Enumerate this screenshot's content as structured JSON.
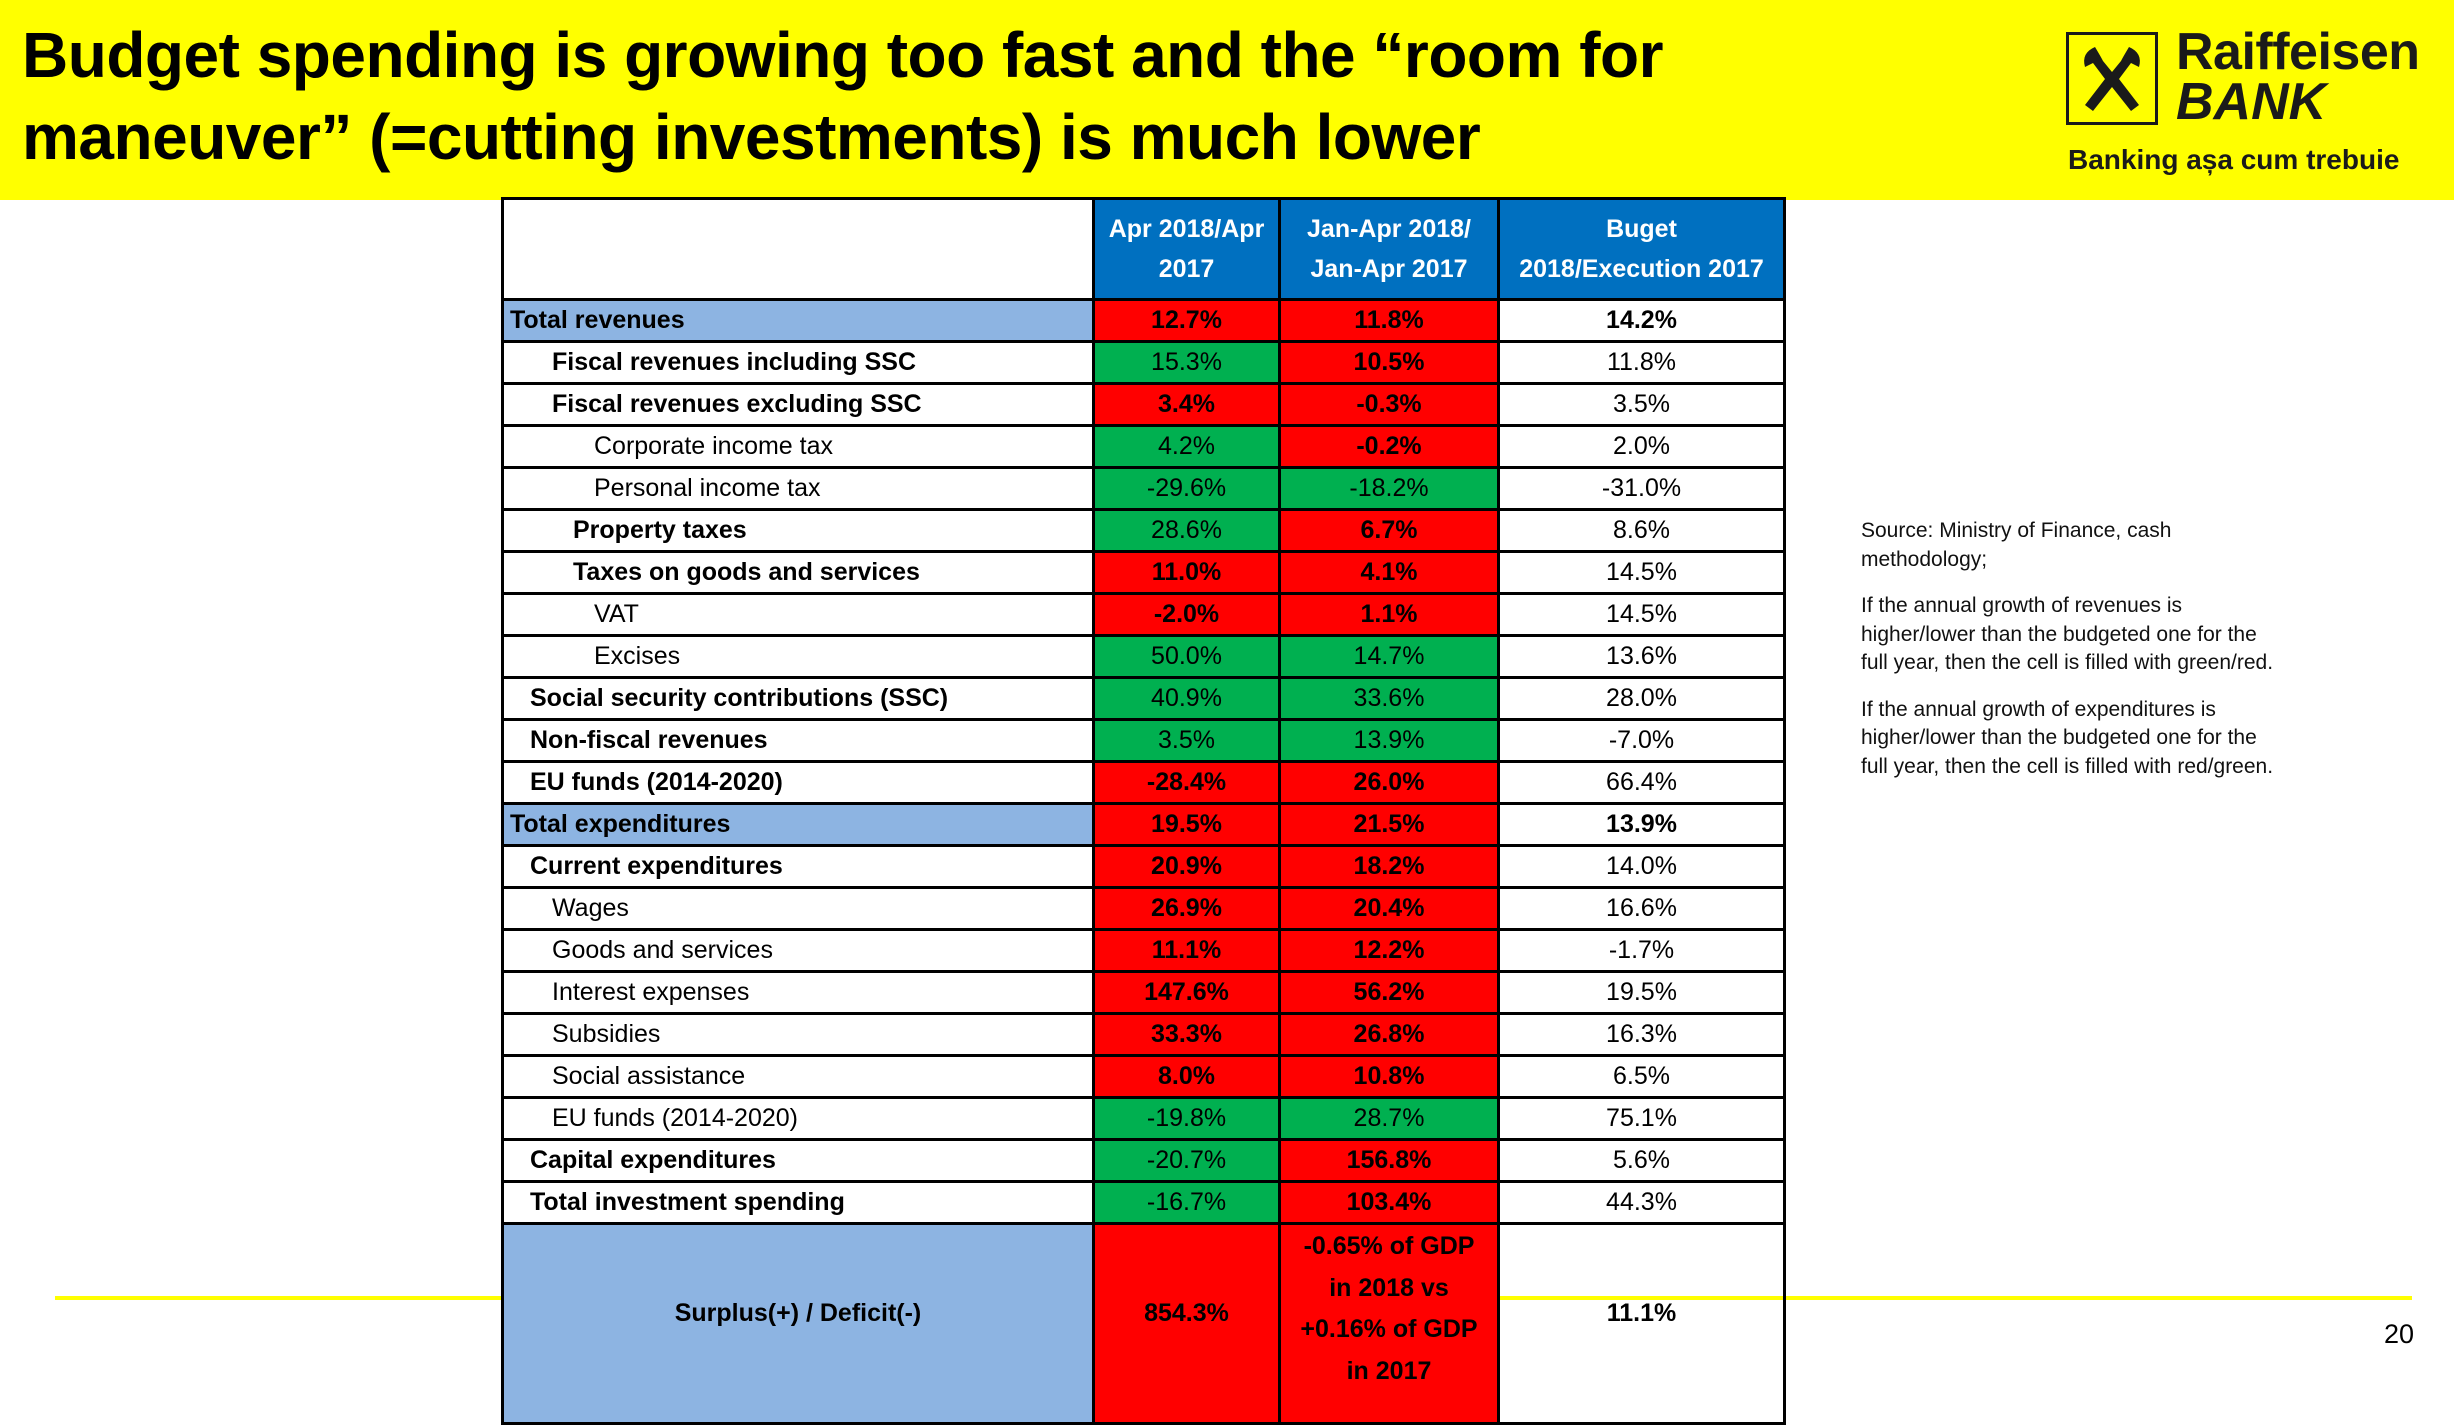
{
  "header": {
    "title_lines": [
      "Budget spending is growing too fast and the “room for",
      "maneuver” (=cutting investments) is much lower"
    ],
    "logo": {
      "name": "Raiffeisen",
      "bank": "BANK",
      "tagline": "Banking așa cum trebuie",
      "icon": "crossed-horse-gables-icon"
    }
  },
  "colors": {
    "banner": "#FFFF00",
    "header_cell": "#0070C0",
    "total_row": "#8DB4E2",
    "red": "#FF0000",
    "green": "#00B050"
  },
  "table": {
    "columns": [
      "",
      "Apr 2018/Apr 2017",
      "Jan-Apr 2018/ Jan-Apr 2017",
      "Buget 2018/Execution 2017"
    ],
    "column_header_lines": [
      [
        "Apr 2018/Apr",
        "2017"
      ],
      [
        "Jan-Apr 2018/",
        "Jan-Apr 2017"
      ],
      [
        "Buget",
        "2018/Execution 2017"
      ]
    ],
    "rows": [
      {
        "label": "Total revenues",
        "c1": "12.7%",
        "c1_fill": "red",
        "c2": "11.8%",
        "c2_fill": "red",
        "c3": "14.2%"
      },
      {
        "label": "Fiscal revenues including SSC",
        "c1": "15.3%",
        "c1_fill": "green",
        "c2": "10.5%",
        "c2_fill": "red",
        "c3": "11.8%"
      },
      {
        "label": "Fiscal revenues excluding SSC",
        "c1": "3.4%",
        "c1_fill": "red",
        "c2": "-0.3%",
        "c2_fill": "red",
        "c3": "3.5%"
      },
      {
        "label": "Corporate income tax",
        "c1": "4.2%",
        "c1_fill": "green",
        "c2": "-0.2%",
        "c2_fill": "red",
        "c3": "2.0%"
      },
      {
        "label": "Personal income tax",
        "c1": "-29.6%",
        "c1_fill": "green",
        "c2": "-18.2%",
        "c2_fill": "green",
        "c3": "-31.0%"
      },
      {
        "label": "Property taxes",
        "c1": "28.6%",
        "c1_fill": "green",
        "c2": "6.7%",
        "c2_fill": "red",
        "c3": "8.6%"
      },
      {
        "label": "Taxes on goods and services",
        "c1": "11.0%",
        "c1_fill": "red",
        "c2": "4.1%",
        "c2_fill": "red",
        "c3": "14.5%"
      },
      {
        "label": "VAT",
        "c1": "-2.0%",
        "c1_fill": "red",
        "c2": "1.1%",
        "c2_fill": "red",
        "c3": "14.5%"
      },
      {
        "label": "Excises",
        "c1": "50.0%",
        "c1_fill": "green",
        "c2": "14.7%",
        "c2_fill": "green",
        "c3": "13.6%"
      },
      {
        "label": "Social security contributions (SSC)",
        "c1": "40.9%",
        "c1_fill": "green",
        "c2": "33.6%",
        "c2_fill": "green",
        "c3": "28.0%"
      },
      {
        "label": "Non-fiscal revenues",
        "c1": "3.5%",
        "c1_fill": "green",
        "c2": "13.9%",
        "c2_fill": "green",
        "c3": "-7.0%"
      },
      {
        "label": "EU funds (2014-2020)",
        "c1": "-28.4%",
        "c1_fill": "red",
        "c2": "26.0%",
        "c2_fill": "red",
        "c3": "66.4%"
      },
      {
        "label": "Total expenditures",
        "c1": "19.5%",
        "c1_fill": "red",
        "c2": "21.5%",
        "c2_fill": "red",
        "c3": "13.9%"
      },
      {
        "label": "Current expenditures",
        "c1": "20.9%",
        "c1_fill": "red",
        "c2": "18.2%",
        "c2_fill": "red",
        "c3": "14.0%"
      },
      {
        "label": "Wages",
        "c1": "26.9%",
        "c1_fill": "red",
        "c2": "20.4%",
        "c2_fill": "red",
        "c3": "16.6%"
      },
      {
        "label": "Goods and services",
        "c1": "11.1%",
        "c1_fill": "red",
        "c2": "12.2%",
        "c2_fill": "red",
        "c3": "-1.7%"
      },
      {
        "label": "Interest expenses",
        "c1": "147.6%",
        "c1_fill": "red",
        "c2": "56.2%",
        "c2_fill": "red",
        "c3": "19.5%"
      },
      {
        "label": "Subsidies",
        "c1": "33.3%",
        "c1_fill": "red",
        "c2": "26.8%",
        "c2_fill": "red",
        "c3": "16.3%"
      },
      {
        "label": "Social assistance",
        "c1": "8.0%",
        "c1_fill": "red",
        "c2": "10.8%",
        "c2_fill": "red",
        "c3": "6.5%"
      },
      {
        "label": "EU funds (2014-2020)",
        "c1": "-19.8%",
        "c1_fill": "green",
        "c2": "28.7%",
        "c2_fill": "green",
        "c3": "75.1%"
      },
      {
        "label": "Capital expenditures",
        "c1": "-20.7%",
        "c1_fill": "green",
        "c2": "156.8%",
        "c2_fill": "red",
        "c3": "5.6%"
      },
      {
        "label": "Total investment spending",
        "c1": "-16.7%",
        "c1_fill": "green",
        "c2": "103.4%",
        "c2_fill": "red",
        "c3": "44.3%"
      }
    ],
    "balance": {
      "label": "Surplus(+) / Deficit(-)",
      "c1": "854.3%",
      "c2_lines": [
        "-0.65% of GDP",
        "in 2018 vs",
        "+0.16% of GDP",
        "in 2017"
      ],
      "c3": "11.1%"
    }
  },
  "notes": {
    "source_lines": [
      "Source: Ministry of Finance, cash",
      "methodology;"
    ],
    "revenues_rule_lines": [
      "If the annual growth of revenues is",
      "higher/lower than the budgeted one for the",
      "full year, then the cell is filled with green/red."
    ],
    "expenditures_rule_lines": [
      "If the annual growth of expenditures is",
      "higher/lower than the budgeted one for the",
      "full year, then the cell is filled with red/green."
    ]
  },
  "page_number": "20"
}
